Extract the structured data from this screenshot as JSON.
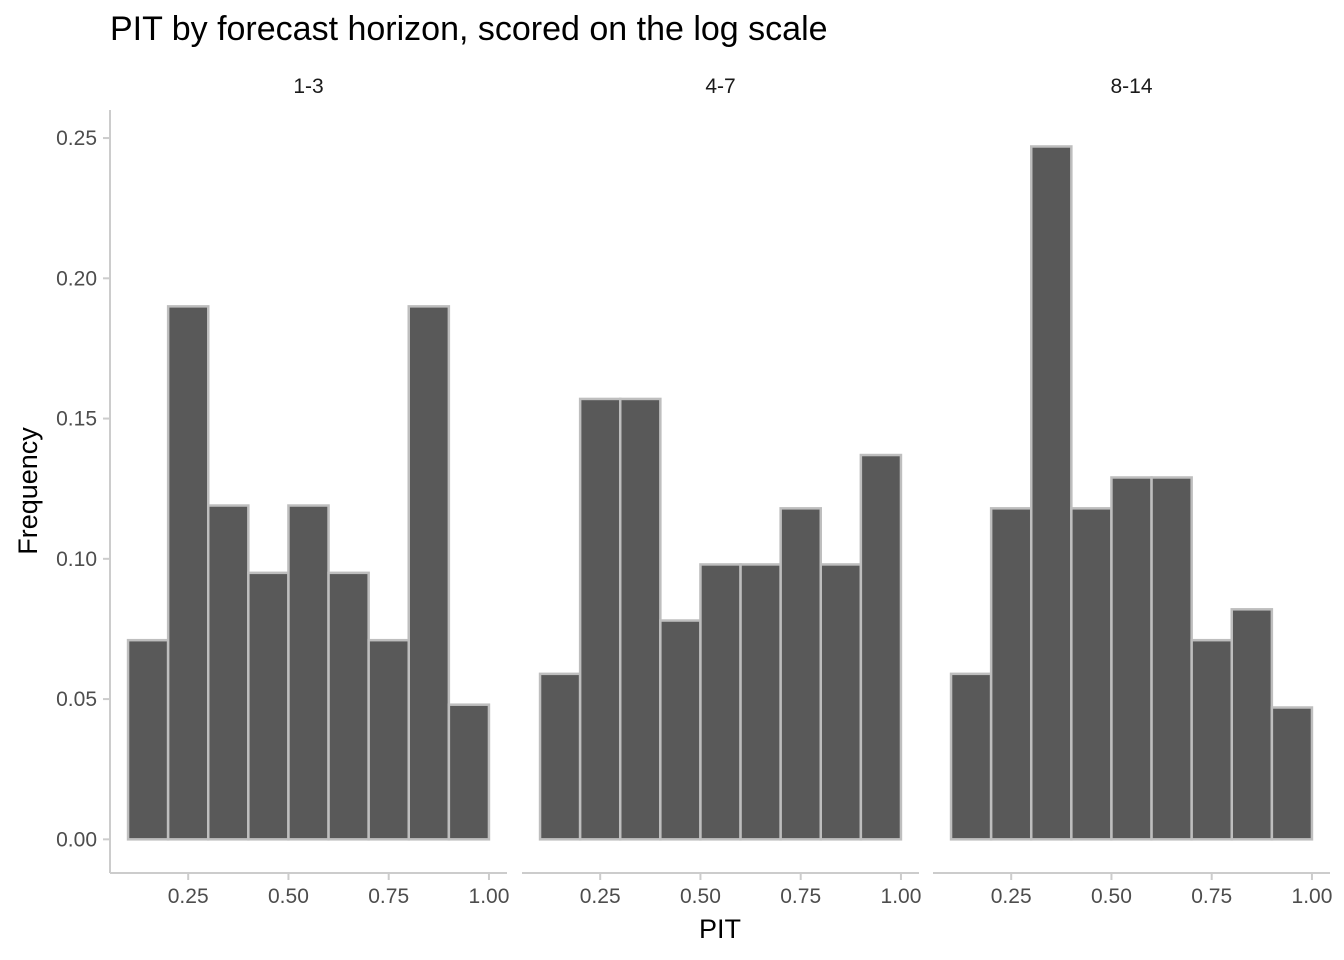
{
  "chart_data": {
    "type": "bar",
    "title": "PIT by forecast horizon, scored on the log scale",
    "xlabel": "PIT",
    "ylabel": "Frequency",
    "x_ticks": [
      "0.25",
      "0.50",
      "0.75",
      "1.00"
    ],
    "y_ticks": [
      "0.00",
      "0.05",
      "0.10",
      "0.15",
      "0.20",
      "0.25"
    ],
    "ylim": [
      -0.012,
      0.26
    ],
    "xlim": [
      0.055,
      1.045
    ],
    "bin_width": 0.1,
    "bin_starts": [
      0.1,
      0.2,
      0.3,
      0.4,
      0.5,
      0.6,
      0.7,
      0.8,
      0.9
    ],
    "grid": false,
    "colors": {
      "bar_fill": "#595959",
      "bar_outline": "#bebebe",
      "axis_line": "#cccccc"
    },
    "panels": [
      {
        "label": "1-3",
        "values": [
          0.071,
          0.19,
          0.119,
          0.095,
          0.119,
          0.095,
          0.071,
          0.19,
          0.048
        ]
      },
      {
        "label": "4-7",
        "values": [
          0.059,
          0.157,
          0.157,
          0.078,
          0.098,
          0.098,
          0.118,
          0.098,
          0.137
        ]
      },
      {
        "label": "8-14",
        "values": [
          0.059,
          0.118,
          0.247,
          0.118,
          0.129,
          0.129,
          0.071,
          0.082,
          0.047
        ]
      }
    ]
  }
}
